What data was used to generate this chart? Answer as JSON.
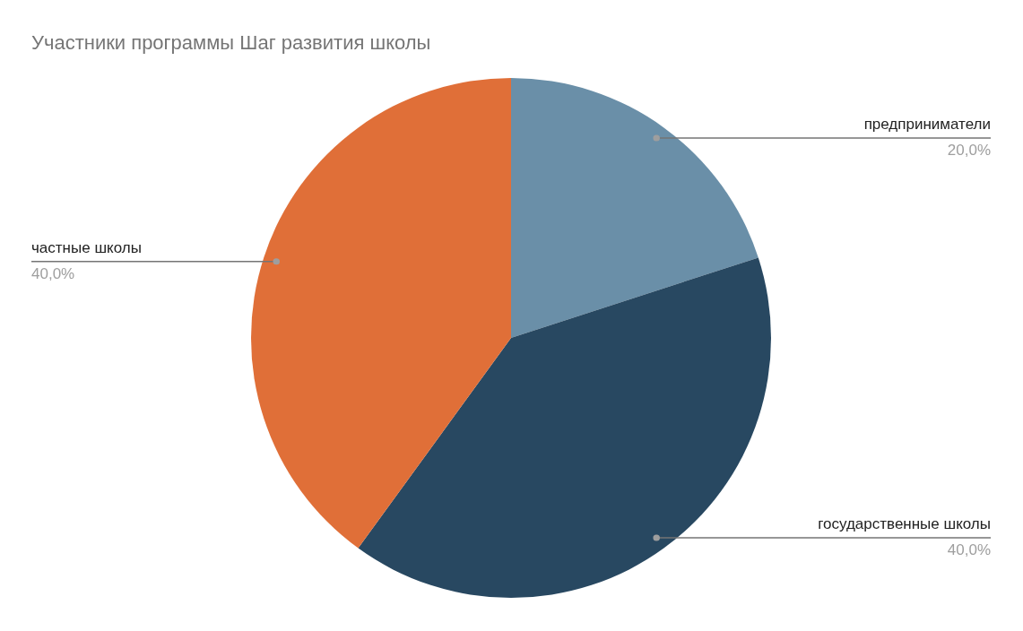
{
  "chart_data": {
    "type": "pie",
    "title": "Участники программы Шаг развития школы",
    "categories": [
      "предприниматели",
      "государственные школы",
      "частные школы"
    ],
    "values": [
      20,
      40,
      40
    ],
    "colors": [
      "#6a8fa8",
      "#284861",
      "#e06f38"
    ],
    "value_labels": [
      "20,0%",
      "40,0%",
      "40,0%"
    ]
  }
}
